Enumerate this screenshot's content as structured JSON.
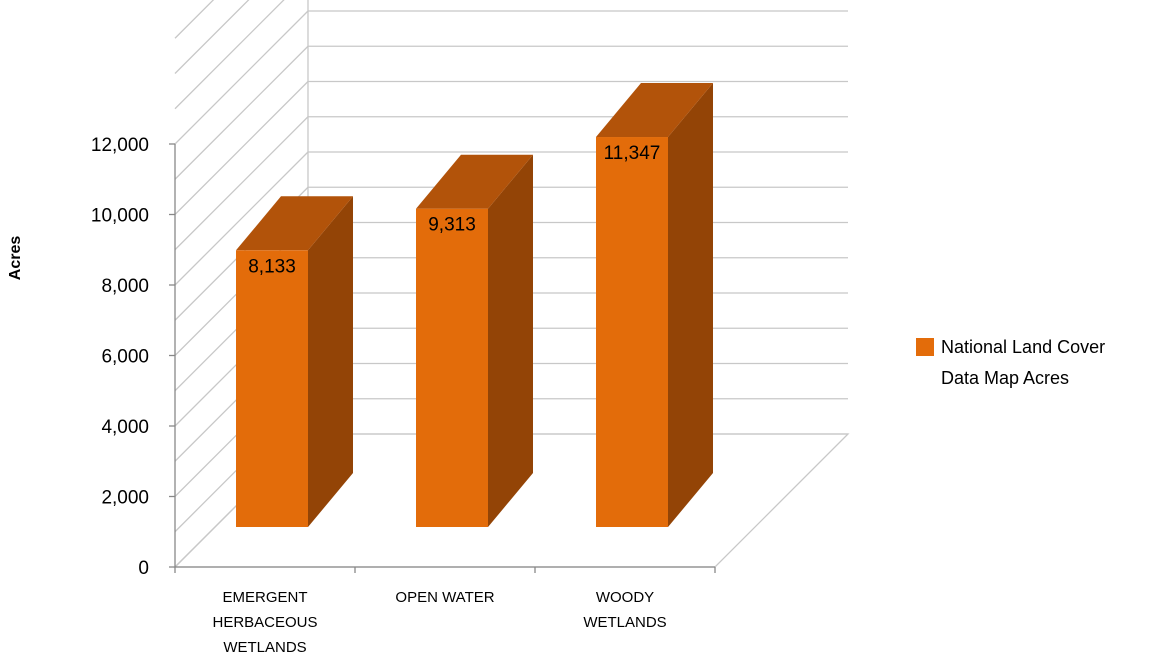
{
  "chart_data": {
    "type": "bar",
    "title": "",
    "ylabel": "Acres",
    "xlabel": "",
    "categories": [
      [
        "EMERGENT",
        "HERBACEOUS",
        "WETLANDS"
      ],
      [
        "OPEN WATER"
      ],
      [
        "WOODY",
        "WETLANDS"
      ]
    ],
    "series": [
      {
        "name": "National Land Cover Data Map Acres",
        "legend_lines": [
          "National Land Cover",
          "Data Map Acres"
        ],
        "values": [
          8133,
          9313,
          11347
        ],
        "data_labels": [
          "8,133",
          "9,313",
          "11,347"
        ]
      }
    ],
    "ylim": [
      0,
      12000
    ],
    "y_ticks": [
      "0",
      "2,000",
      "4,000",
      "6,000",
      "8,000",
      "10,000",
      "12,000"
    ],
    "grid": true,
    "legend_position": "right",
    "colors": {
      "bar_front": "#e36c0a",
      "bar_top": "#b2530a",
      "bar_side": "#934406",
      "grid": "#c8c8c8",
      "axis": "#888888"
    }
  }
}
